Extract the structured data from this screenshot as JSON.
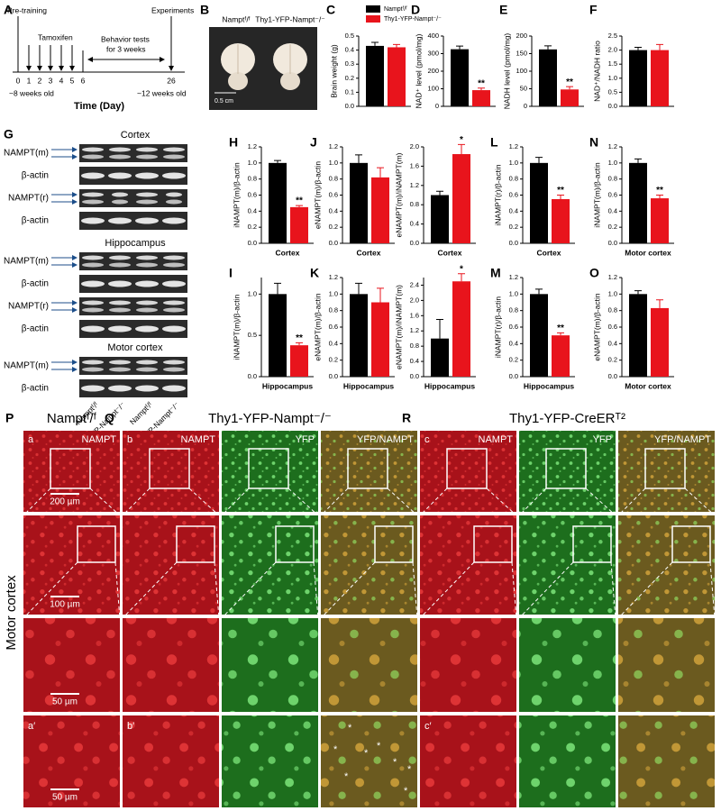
{
  "timeline": {
    "label": "A",
    "pre_training": "Pre-training",
    "tamoxifen": "Tamoxifen",
    "experiments": "Experiments",
    "behavior": "Behavior tests",
    "behavior2": "for 3 weeks",
    "days": [
      0,
      1,
      2,
      3,
      4,
      5,
      6,
      26
    ],
    "start_age": "~8 weeks old",
    "end_age": "~12 weeks old",
    "axis_label": "Time (Day)"
  },
  "photo": {
    "label": "B",
    "left": "Namptᶠ/ᶠ",
    "right": "Thy1-YFP-Nampt⁻/⁻",
    "scale": "0.5 cm"
  },
  "chart_data": [
    {
      "type": "bar",
      "label": "C",
      "ylabel": "Brain weight (g)",
      "ylim": [
        0,
        0.5
      ],
      "yticks": [
        {
          "value": 0,
          "label": "0.0"
        },
        0.1,
        0.2,
        0.3,
        0.4,
        0.5
      ],
      "legend": "top",
      "series": [
        {
          "name": "Namptᶠ/ᶠ",
          "color": "#000000",
          "values": [
            0.43
          ],
          "errors": [
            0.025
          ]
        },
        {
          "name": "Thy1-YFP-Nampt⁻/⁻",
          "color": "#e8141c",
          "values": [
            0.42
          ],
          "errors": [
            0.02
          ]
        }
      ]
    },
    {
      "type": "bar",
      "label": "D",
      "ylabel": "NAD⁺ level (pmol/mg)",
      "ylim": [
        0,
        400
      ],
      "yticks": [
        0,
        100,
        200,
        300,
        400
      ],
      "series": [
        {
          "color": "#000000",
          "values": [
            325
          ],
          "errors": [
            18
          ]
        },
        {
          "color": "#e8141c",
          "values": [
            92
          ],
          "errors": [
            12
          ],
          "significance": [
            "**"
          ]
        }
      ]
    },
    {
      "type": "bar",
      "label": "E",
      "ylabel": "NADH level (pmol/mg)",
      "ylim": [
        0,
        200
      ],
      "yticks": [
        0,
        50,
        100,
        150,
        200
      ],
      "series": [
        {
          "color": "#000000",
          "values": [
            162
          ],
          "errors": [
            10
          ]
        },
        {
          "color": "#e8141c",
          "values": [
            48
          ],
          "errors": [
            8
          ],
          "significance": [
            "**"
          ]
        }
      ]
    },
    {
      "type": "bar",
      "label": "F",
      "ylabel": "NAD⁺/NADH ratio",
      "ylim": [
        0,
        2.5
      ],
      "yticks": [
        {
          "value": 0,
          "label": "0.0"
        },
        0.5,
        {
          "value": 1,
          "label": "1.0"
        },
        1.5,
        {
          "value": 2,
          "label": "2.0"
        },
        2.5
      ],
      "series": [
        {
          "color": "#000000",
          "values": [
            2.0
          ],
          "errors": [
            0.1
          ]
        },
        {
          "color": "#e8141c",
          "values": [
            2.0
          ],
          "errors": [
            0.2
          ]
        }
      ]
    },
    {
      "type": "bar",
      "label": "H",
      "ylabel": "iNAMPT(m)/β-actin",
      "xlabel": "Cortex",
      "ylim": [
        0,
        1.2
      ],
      "yticks": [
        {
          "value": 0,
          "label": "0.0"
        },
        0.2,
        0.4,
        0.6,
        0.8,
        {
          "value": 1,
          "label": "1.0"
        },
        1.2
      ],
      "series": [
        {
          "color": "#000000",
          "values": [
            1.0
          ],
          "errors": [
            0.03
          ]
        },
        {
          "color": "#e8141c",
          "values": [
            0.45
          ],
          "errors": [
            0.02
          ],
          "significance": [
            "**"
          ]
        }
      ]
    },
    {
      "type": "bar",
      "label": "J",
      "ylabel": "eNAMPT(m)/β-actin",
      "xlabel": "Cortex",
      "ylim": [
        0,
        1.2
      ],
      "yticks": [
        {
          "value": 0,
          "label": "0.0"
        },
        0.2,
        0.4,
        0.6,
        0.8,
        {
          "value": 1,
          "label": "1.0"
        },
        1.2
      ],
      "series": [
        {
          "color": "#000000",
          "values": [
            1.0
          ],
          "errors": [
            0.1
          ]
        },
        {
          "color": "#e8141c",
          "values": [
            0.82
          ],
          "errors": [
            0.12
          ]
        }
      ]
    },
    {
      "type": "bar",
      "ylabel": "eNAMPT(m)/iNAMPT(m)",
      "xlabel": "Cortex",
      "ylim": [
        0,
        2.0
      ],
      "yticks": [
        {
          "value": 0,
          "label": "0.0"
        },
        0.4,
        0.8,
        1.2,
        1.6,
        {
          "value": 2,
          "label": "2.0"
        }
      ],
      "series": [
        {
          "color": "#000000",
          "values": [
            1.0
          ],
          "errors": [
            0.08
          ]
        },
        {
          "color": "#e8141c",
          "values": [
            1.85
          ],
          "errors": [
            0.2
          ],
          "significance": [
            "*"
          ]
        }
      ]
    },
    {
      "type": "bar",
      "label": "L",
      "ylabel": "iNAMPT(r)/β-actin",
      "xlabel": "Cortex",
      "ylim": [
        0,
        1.2
      ],
      "yticks": [
        {
          "value": 0,
          "label": "0.0"
        },
        0.2,
        0.4,
        0.6,
        0.8,
        {
          "value": 1,
          "label": "1.0"
        },
        1.2
      ],
      "series": [
        {
          "color": "#000000",
          "values": [
            1.0
          ],
          "errors": [
            0.07
          ]
        },
        {
          "color": "#e8141c",
          "values": [
            0.55
          ],
          "errors": [
            0.05
          ],
          "significance": [
            "**"
          ]
        }
      ]
    },
    {
      "type": "bar",
      "label": "N",
      "ylabel": "iNAMPT(m)/β-actin",
      "xlabel": "Motor cortex",
      "ylim": [
        0,
        1.2
      ],
      "yticks": [
        {
          "value": 0,
          "label": "0.0"
        },
        0.2,
        0.4,
        0.6,
        0.8,
        {
          "value": 1,
          "label": "1.0"
        },
        1.2
      ],
      "series": [
        {
          "color": "#000000",
          "values": [
            1.0
          ],
          "errors": [
            0.05
          ]
        },
        {
          "color": "#e8141c",
          "values": [
            0.56
          ],
          "errors": [
            0.04
          ],
          "significance": [
            "**"
          ]
        }
      ]
    },
    {
      "type": "bar",
      "label": "I",
      "ylabel": "iNAMPT(m)/β-actin",
      "xlabel": "Hippocampus",
      "ylim": [
        0,
        1.2
      ],
      "yticks": [
        {
          "value": 0,
          "label": "0.0"
        },
        0.5,
        {
          "value": 1,
          "label": "1.0"
        }
      ],
      "series": [
        {
          "color": "#000000",
          "values": [
            1.0
          ],
          "errors": [
            0.13
          ]
        },
        {
          "color": "#e8141c",
          "values": [
            0.38
          ],
          "errors": [
            0.03
          ],
          "significance": [
            "**"
          ]
        }
      ]
    },
    {
      "type": "bar",
      "label": "K",
      "ylabel": "eNAMPT(m)/β-actin",
      "xlabel": "Hippocampus",
      "ylim": [
        0,
        1.2
      ],
      "yticks": [
        {
          "value": 0,
          "label": "0.0"
        },
        0.2,
        0.4,
        0.6,
        0.8,
        {
          "value": 1,
          "label": "1.0"
        },
        1.2
      ],
      "series": [
        {
          "color": "#000000",
          "values": [
            1.0
          ],
          "errors": [
            0.13
          ]
        },
        {
          "color": "#e8141c",
          "values": [
            0.9
          ],
          "errors": [
            0.17
          ]
        }
      ]
    },
    {
      "type": "bar",
      "ylabel": "eNAMPT(m)/iNAMPT(m)",
      "xlabel": "Hippocampus",
      "ylim": [
        0,
        2.6
      ],
      "yticks": [
        {
          "value": 0,
          "label": "0.0"
        },
        0.4,
        0.8,
        1.2,
        1.6,
        {
          "value": 2,
          "label": "2.0"
        },
        2.4
      ],
      "series": [
        {
          "color": "#000000",
          "values": [
            1.0
          ],
          "errors": [
            0.5
          ]
        },
        {
          "color": "#e8141c",
          "values": [
            2.5
          ],
          "errors": [
            0.2
          ],
          "significance": [
            "*"
          ]
        }
      ]
    },
    {
      "type": "bar",
      "label": "M",
      "ylabel": "iNAMPT(r)/β-actin",
      "xlabel": "Hippocampus",
      "ylim": [
        0,
        1.2
      ],
      "yticks": [
        {
          "value": 0,
          "label": "0.0"
        },
        0.2,
        0.4,
        0.6,
        0.8,
        {
          "value": 1,
          "label": "1.0"
        },
        1.2
      ],
      "series": [
        {
          "color": "#000000",
          "values": [
            1.0
          ],
          "errors": [
            0.06
          ]
        },
        {
          "color": "#e8141c",
          "values": [
            0.5
          ],
          "errors": [
            0.03
          ],
          "significance": [
            "**"
          ]
        }
      ]
    },
    {
      "type": "bar",
      "label": "O",
      "ylabel": "eNAMPT(m)/β-actin",
      "xlabel": "Motor cortex",
      "ylim": [
        0,
        1.2
      ],
      "yticks": [
        {
          "value": 0,
          "label": "0.0"
        },
        0.2,
        0.4,
        0.6,
        0.8,
        {
          "value": 1,
          "label": "1.0"
        },
        1.2
      ],
      "series": [
        {
          "color": "#000000",
          "values": [
            1.0
          ],
          "errors": [
            0.04
          ]
        },
        {
          "color": "#e8141c",
          "values": [
            0.83
          ],
          "errors": [
            0.1
          ]
        }
      ]
    }
  ],
  "blots": {
    "label": "G",
    "sections": [
      {
        "title": "Cortex",
        "rows": [
          "NAMPT(m)",
          "β-actin",
          "NAMPT(r)",
          "β-actin"
        ]
      },
      {
        "title": "Hippocampus",
        "rows": [
          "NAMPT(m)",
          "β-actin",
          "NAMPT(r)",
          "β-actin"
        ]
      },
      {
        "title": "Motor cortex",
        "rows": [
          "NAMPT(m)",
          "β-actin"
        ]
      }
    ],
    "lanes": [
      "Namptᶠ/ᶠ",
      "Thy1-YFP-Nampt⁻/⁻",
      "Namptᶠ/ᶠ",
      "Thy1-YFP-Nampt⁻/⁻"
    ]
  },
  "micrographs": {
    "side_label": "Motor cortex",
    "marker": "*",
    "scale_bars": [
      "200 µm",
      "100 µm",
      "50 µm",
      "50 µm"
    ],
    "groups": [
      {
        "label": "P",
        "title": "Namptᶠ/ᶠ",
        "tag": "a",
        "tag2": "a′",
        "channels": [
          "NAMPT"
        ]
      },
      {
        "label": "Q",
        "title": "Thy1-YFP-Nampt⁻/⁻",
        "tag": "b",
        "tag2": "b′",
        "channels": [
          "NAMPT",
          "YFP",
          "YFP/NAMPT"
        ]
      },
      {
        "label": "R",
        "title": "Thy1-YFP-CreERᵀ²",
        "tag": "c",
        "tag2": "c′",
        "channels": [
          "NAMPT",
          "YFP",
          "YFP/NAMPT"
        ]
      }
    ]
  }
}
